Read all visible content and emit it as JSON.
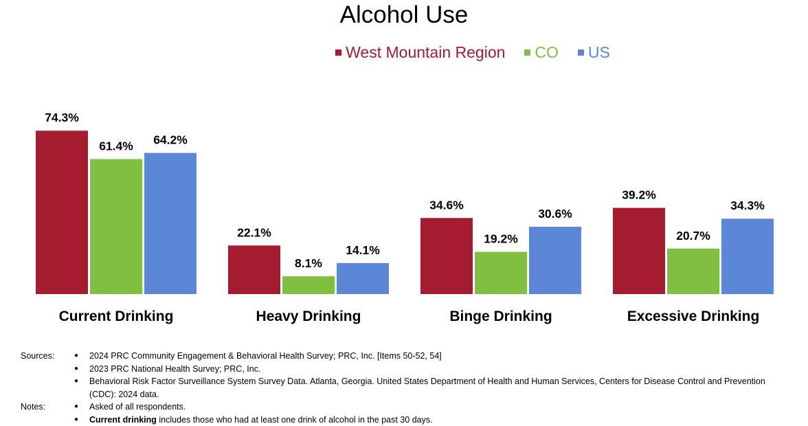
{
  "chart_data": {
    "type": "bar",
    "title": "Alcohol Use",
    "categories": [
      "Current Drinking",
      "Heavy Drinking",
      "Binge Drinking",
      "Excessive Drinking"
    ],
    "series": [
      {
        "name": "West Mountain Region",
        "color": "#a51c30",
        "values": [
          74.3,
          22.1,
          34.6,
          39.2
        ],
        "labels": [
          "74.3%",
          "22.1%",
          "34.6%",
          "39.2%"
        ]
      },
      {
        "name": "CO",
        "color": "#80bf3f",
        "values": [
          61.4,
          8.1,
          19.2,
          20.7
        ],
        "labels": [
          "61.4%",
          "8.1%",
          "19.2%",
          "20.7%"
        ]
      },
      {
        "name": "US",
        "color": "#5b87d6",
        "values": [
          64.2,
          14.1,
          30.6,
          34.3
        ],
        "labels": [
          "64.2%",
          "14.1%",
          "30.6%",
          "34.3%"
        ]
      }
    ],
    "xlabel": "",
    "ylabel": "",
    "ylim": [
      0,
      100
    ],
    "grid": false,
    "legend_position": "top-center"
  },
  "footer": {
    "sources_label": "Sources:",
    "sources": [
      "2024 PRC Community Engagement & Behavioral Health Survey; PRC, Inc. [Items 50-52, 54]",
      "2023 PRC National Health Survey; PRC, Inc.",
      "Behavioral Risk Factor Surveillance System Survey Data. Atlanta, Georgia. United States Department of Health and Human Services, Centers for Disease Control and Prevention (CDC): 2024 data."
    ],
    "notes_label": "Notes:",
    "notes": [
      "Asked of all respondents."
    ],
    "note_term": "Current drinking",
    "note_term_rest": " includes those who had at least one drink of alcohol in the past 30 days."
  }
}
